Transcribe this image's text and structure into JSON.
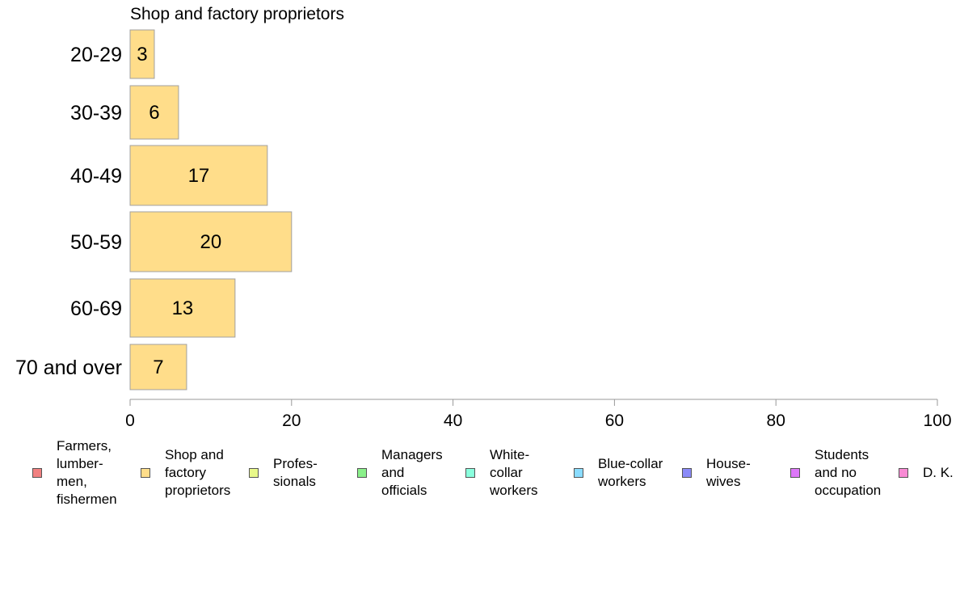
{
  "chart_data": {
    "type": "bar",
    "orientation": "horizontal",
    "title": "Shop and factory proprietors",
    "categories": [
      "20-29",
      "30-39",
      "40-49",
      "50-59",
      "60-69",
      "70 and over"
    ],
    "series": [
      {
        "name": "Shop and\nfactory\nproprietors",
        "values": [
          3,
          6,
          17,
          20,
          13,
          7
        ],
        "color": "#ffdd8a"
      }
    ],
    "data_labels": [
      "3",
      "6",
      "17",
      "20",
      "13",
      "7"
    ],
    "xlim": [
      0,
      100
    ],
    "x_ticks": [
      0,
      20,
      40,
      60,
      80,
      100
    ],
    "x_tick_labels": [
      "0",
      "20",
      "40",
      "60",
      "80",
      "100"
    ],
    "grid": false,
    "legend": {
      "position": "bottom",
      "entries": [
        {
          "label": "Farmers,\nlumber-\nmen,\nfishermen",
          "color": "#f08080"
        },
        {
          "label": "Shop and\nfactory\nproprietors",
          "color": "#ffdd8a"
        },
        {
          "label": "Profes-\nsionals",
          "color": "#e8f88a"
        },
        {
          "label": "Managers\nand\nofficials",
          "color": "#8af08a"
        },
        {
          "label": "White-\ncollar\nworkers",
          "color": "#8affdd"
        },
        {
          "label": "Blue-collar\nworkers",
          "color": "#8adcff"
        },
        {
          "label": "House-\nwives",
          "color": "#8a8af8"
        },
        {
          "label": "Students\nand no\noccupation",
          "color": "#dd77f8"
        },
        {
          "label": "D. K.",
          "color": "#f88ad4"
        }
      ]
    }
  }
}
